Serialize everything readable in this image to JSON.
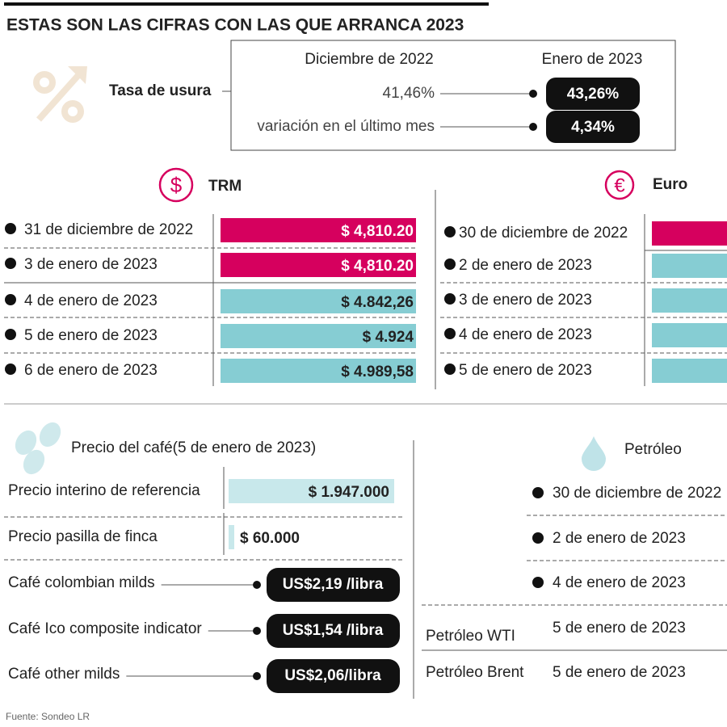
{
  "title": "ESTAS SON LAS CIFRAS CON LAS QUE ARRANCA 2023",
  "usura": {
    "label": "Tasa de usura",
    "col_prev": "Diciembre de 2022",
    "col_curr": "Enero de 2023",
    "rows": [
      {
        "label": "41,46%",
        "value": "43,26%"
      },
      {
        "label": "variación en el último mes",
        "value": "4,34%"
      }
    ]
  },
  "trm": {
    "title": "TRM",
    "rows": [
      {
        "date": "31 de diciembre de 2022",
        "value": "$ 4,810.20"
      },
      {
        "date": "3 de enero de 2023",
        "value": "$ 4,810.20"
      },
      {
        "date": "4 de enero de 2023",
        "value": "$ 4.842,26"
      },
      {
        "date": "5 de enero de 2023",
        "value": "$ 4.924"
      },
      {
        "date": "6 de enero de 2023",
        "value": "$ 4.989,58"
      }
    ]
  },
  "euro": {
    "title": "Euro",
    "rows": [
      {
        "date": "30 de diciembre de 2022"
      },
      {
        "date": "2 de enero de 2023"
      },
      {
        "date": "3 de enero de 2023"
      },
      {
        "date": "4 de enero de 2023"
      },
      {
        "date": "5 de enero de 2023"
      }
    ]
  },
  "cafe": {
    "title": "Precio del café(5 de enero de 2023)",
    "rows": [
      {
        "label": "Precio interino de referencia",
        "value": "$ 1.947.000"
      },
      {
        "label": "Precio pasilla de finca",
        "value": "$ 60.000"
      },
      {
        "label": "Café colombian milds",
        "value": "US$2,19 /libra"
      },
      {
        "label": "Café Ico composite indicator",
        "value": "US$1,54 /libra"
      },
      {
        "label": "Café other milds",
        "value": "US$2,06/libra"
      }
    ]
  },
  "petroleo": {
    "title": "Petróleo",
    "rows": [
      {
        "date": "30 de diciembre de 2022"
      },
      {
        "date": "2 de enero de 2023"
      },
      {
        "date": "4 de enero de 2023"
      },
      {
        "label": "Petróleo WTI",
        "date": "5 de enero de 2023"
      },
      {
        "label": "Petróleo Brent",
        "date": "5 de enero de 2023"
      }
    ]
  },
  "source": "Fuente: Sondeo LR"
}
